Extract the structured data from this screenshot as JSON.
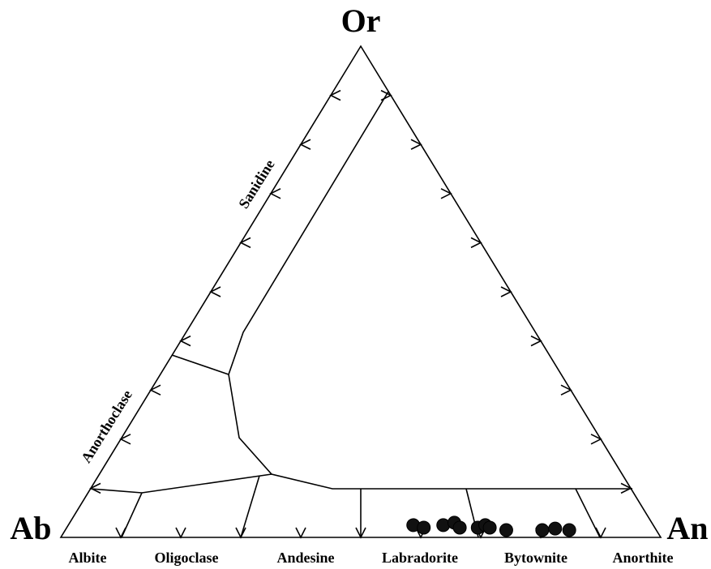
{
  "chart_data": {
    "type": "ternary",
    "apices": {
      "top": "Or",
      "left": "Ab",
      "right": "An"
    },
    "regions": [
      "Albite",
      "Oligoclase",
      "Andesine",
      "Labradorite",
      "Bytownite",
      "Anorthite"
    ],
    "side_labels": [
      "Sanidine",
      "Anorthoclase"
    ],
    "ticks": [
      10,
      20,
      30,
      40,
      50,
      60,
      70,
      80,
      90
    ],
    "points": {
      "color": "#111111",
      "an": [
        58,
        60,
        63,
        64.6,
        66,
        69,
        70,
        71,
        74,
        80,
        82,
        84.5
      ],
      "or": [
        1.5,
        1,
        1.5,
        2,
        1,
        1,
        1.5,
        1,
        0.5,
        0.5,
        0.8,
        0.5
      ]
    }
  }
}
